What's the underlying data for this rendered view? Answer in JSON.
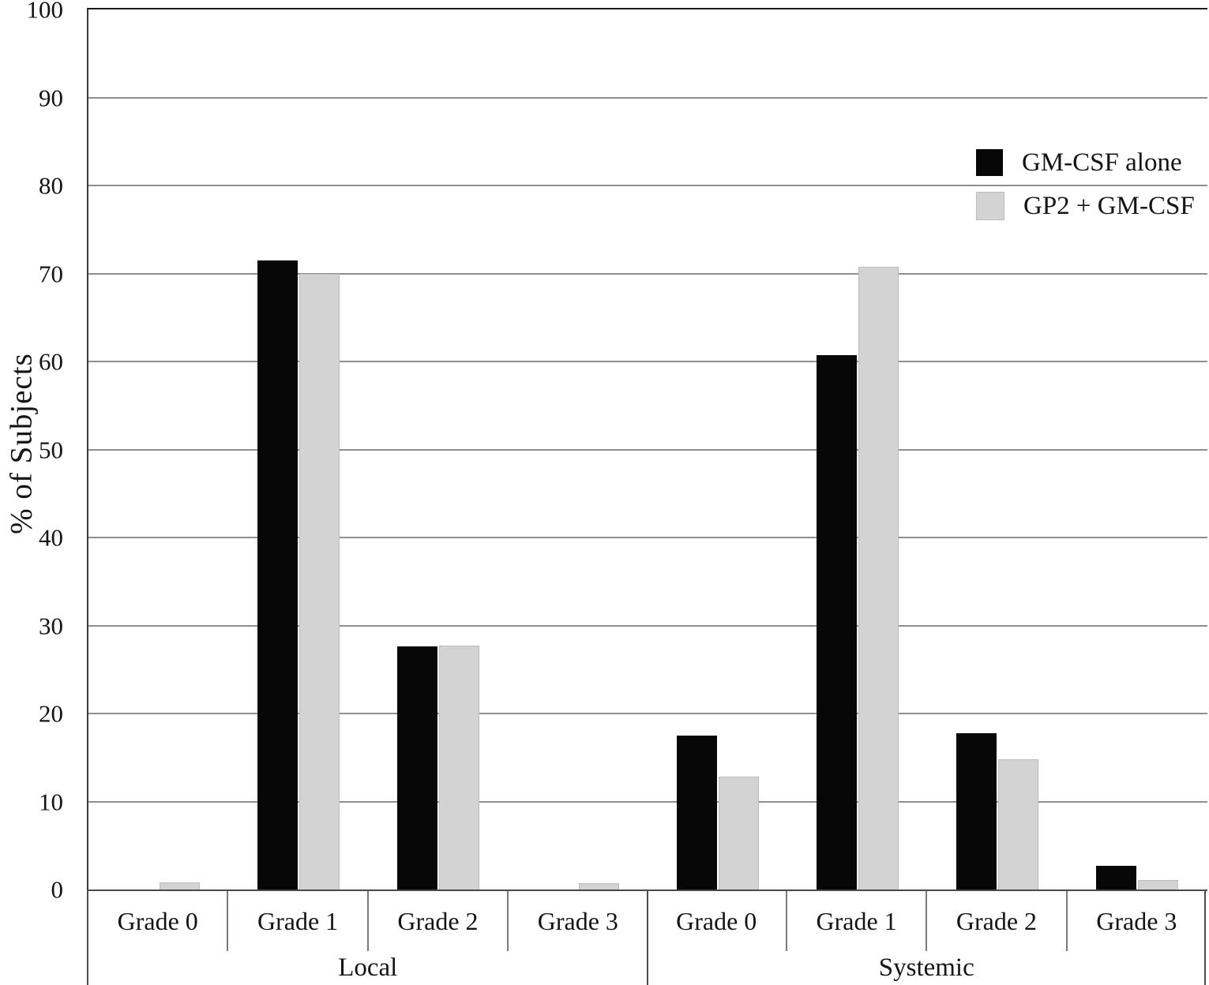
{
  "figure": {
    "y_axis_title": "% of Subjects",
    "group_labels": [
      "Local",
      "Systemic"
    ]
  },
  "legend": {
    "items": [
      {
        "label": "GM-CSF alone",
        "color": "#070707"
      },
      {
        "label": "GP2 + GM-CSF",
        "color": "#d3d3d3"
      }
    ]
  },
  "chart_data": {
    "type": "bar",
    "title": "",
    "xlabel": "",
    "ylabel": "% of Subjects",
    "ylim": [
      0,
      100
    ],
    "ytick_step": 10,
    "yticks": [
      0,
      10,
      20,
      30,
      40,
      50,
      60,
      70,
      80,
      90,
      100
    ],
    "grid": "horizontal-major",
    "legend_position": "upper-right-inside",
    "groups": [
      "Local",
      "Systemic"
    ],
    "categories": [
      "Grade 0",
      "Grade 1",
      "Grade 2",
      "Grade 3",
      "Grade 0",
      "Grade 1",
      "Grade 2",
      "Grade 3"
    ],
    "series": [
      {
        "name": "GM-CSF alone",
        "color": "#070707",
        "values": [
          0,
          71.5,
          27.6,
          0,
          17.5,
          60.7,
          17.8,
          2.7
        ]
      },
      {
        "name": "GP2 + GM-CSF",
        "color": "#d3d3d3",
        "values": [
          0.8,
          70.0,
          27.7,
          0.7,
          12.8,
          70.8,
          14.8,
          1.1
        ]
      }
    ]
  }
}
